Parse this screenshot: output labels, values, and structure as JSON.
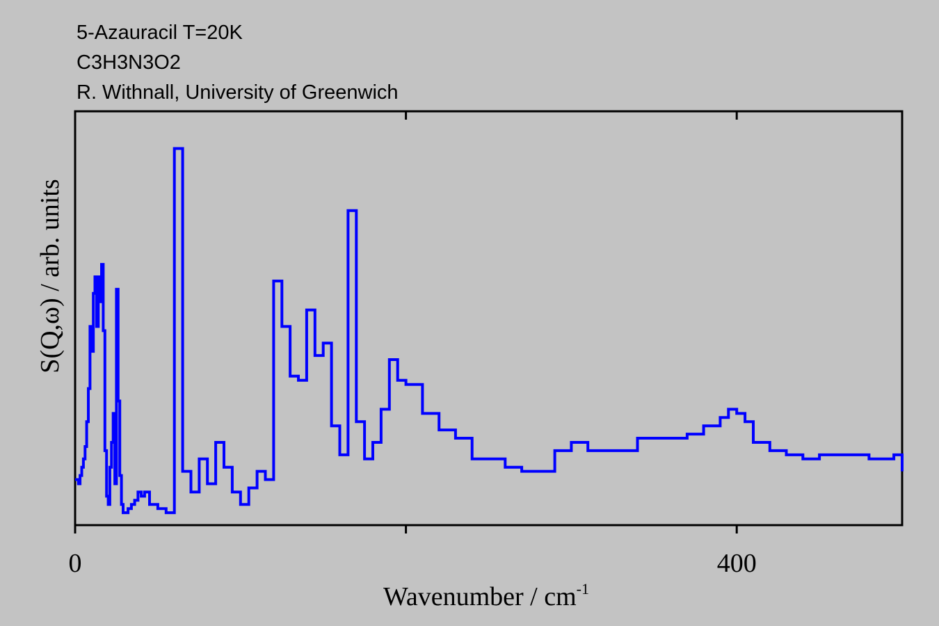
{
  "header": {
    "line1": "5-Azauracil T=20K",
    "line2": "C3H3N3O2",
    "line3": "R. Withnall, University of Greenwich"
  },
  "chart_data": {
    "type": "line",
    "style": "step",
    "color": "#0000ff",
    "background": "#c3c3c3",
    "xlabel_main": "Wavenumber / cm",
    "xlabel_sup": "-1",
    "ylabel": "S(Q,ω) / arb. units",
    "xlim": [
      0,
      500
    ],
    "ylim": [
      0,
      100
    ],
    "x_major_ticks": [
      0,
      200,
      400
    ],
    "x_tick_labels": [
      "0",
      "",
      "400"
    ],
    "grid": false,
    "legend": "none",
    "series": [
      {
        "x": [
          0,
          2,
          3,
          4,
          5,
          6,
          7,
          8,
          9,
          10,
          11,
          12,
          13,
          14,
          15,
          16,
          17,
          18,
          19,
          20,
          21,
          22,
          23,
          24,
          25,
          26,
          27,
          28,
          29,
          30,
          32,
          34,
          36,
          38,
          40,
          42,
          45,
          50,
          55,
          60,
          65,
          70,
          75,
          80,
          85,
          90,
          95,
          100,
          105,
          110,
          115,
          120,
          125,
          130,
          135,
          140,
          145,
          150,
          155,
          160,
          165,
          170,
          175,
          180,
          185,
          190,
          195,
          200,
          210,
          220,
          230,
          240,
          250,
          260,
          270,
          280,
          290,
          300,
          310,
          320,
          330,
          340,
          350,
          360,
          370,
          380,
          390,
          395,
          400,
          405,
          410,
          420,
          430,
          440,
          450,
          460,
          470,
          480,
          490,
          495,
          500
        ],
        "y": [
          11,
          10,
          12,
          14,
          16,
          19,
          25,
          33,
          48,
          42,
          56,
          60,
          48,
          60,
          54,
          63,
          47,
          18,
          7,
          5,
          14,
          20,
          27,
          10,
          57,
          30,
          12,
          5,
          3,
          3,
          4,
          5,
          6,
          8,
          7,
          8,
          5,
          4,
          3,
          91,
          13,
          8,
          16,
          10,
          20,
          14,
          8,
          5,
          9,
          13,
          11,
          59,
          48,
          36,
          35,
          52,
          41,
          44,
          24,
          17,
          76,
          25,
          16,
          20,
          28,
          40,
          35,
          34,
          27,
          23,
          21,
          16,
          16,
          14,
          13,
          13,
          18,
          20,
          18,
          18,
          18,
          21,
          21,
          21,
          22,
          24,
          26,
          28,
          27,
          25,
          20,
          18,
          17,
          16,
          17,
          17,
          17,
          16,
          16,
          17,
          13
        ]
      }
    ]
  }
}
